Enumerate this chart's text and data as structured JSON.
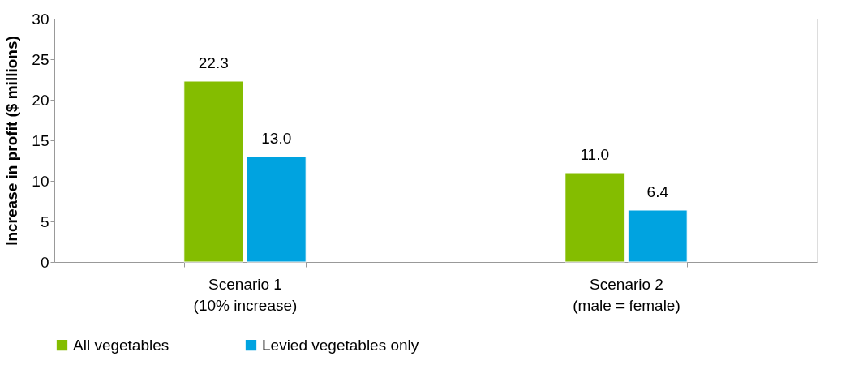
{
  "chart_data": {
    "type": "bar",
    "ylabel": "Increase in profit ($ millions)",
    "categories": [
      "Scenario 1\n(10% increase)",
      "Scenario 2\n(male = female)"
    ],
    "series": [
      {
        "name": "All vegetables",
        "color": "#84bd00",
        "values": [
          22.3,
          11.0
        ],
        "value_labels": [
          "22.3",
          "11.0"
        ]
      },
      {
        "name": "Levied vegetables only",
        "color": "#00a3e0",
        "values": [
          13.0,
          6.4
        ],
        "value_labels": [
          "13.0",
          "6.4"
        ]
      }
    ],
    "ylim": [
      0,
      30
    ],
    "yticks": [
      0,
      5,
      10,
      15,
      20,
      25,
      30
    ],
    "grid": false,
    "legend": "bottom"
  }
}
